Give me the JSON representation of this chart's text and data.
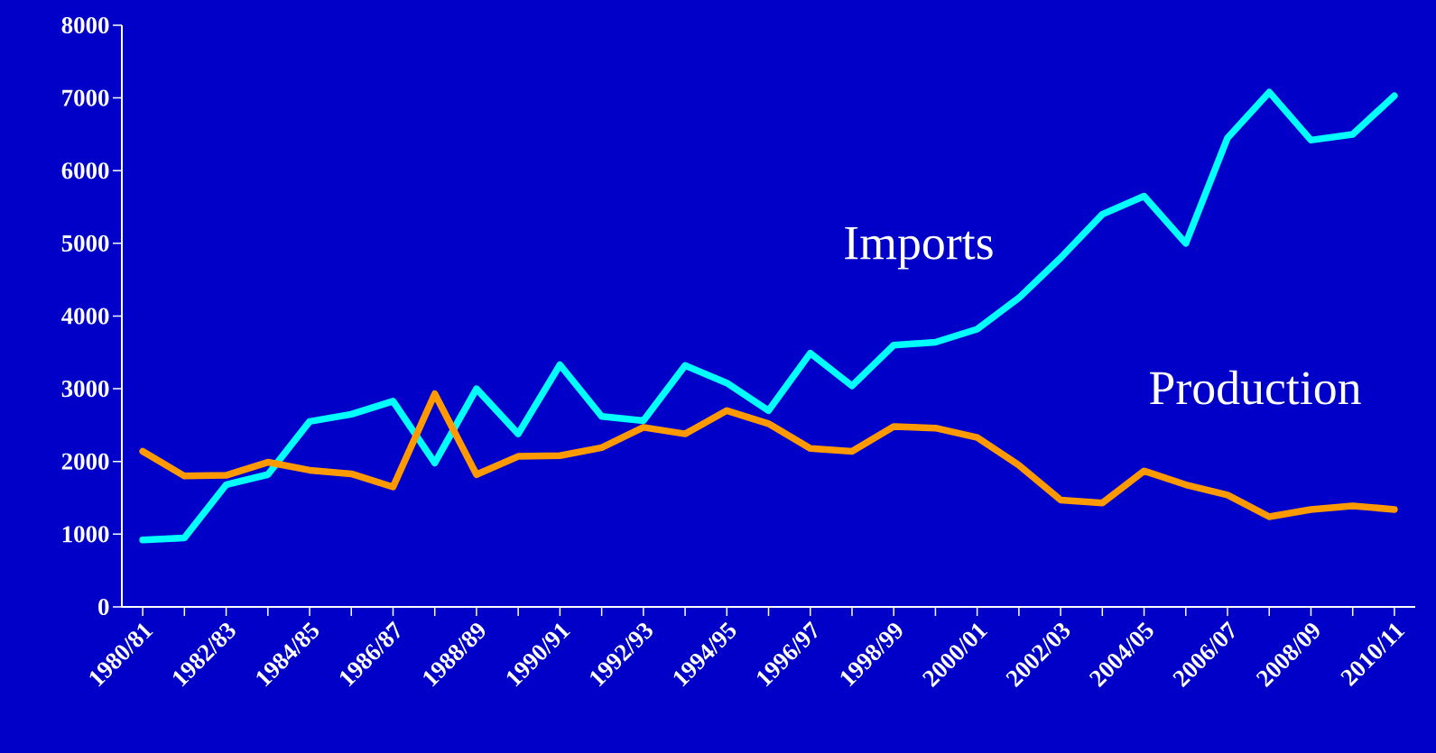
{
  "chart_data": {
    "type": "line",
    "categories": [
      "1980/81",
      null,
      "1982/83",
      null,
      "1984/85",
      null,
      "1986/87",
      null,
      "1988/89",
      null,
      "1990/91",
      null,
      "1992/93",
      null,
      "1994/95",
      null,
      "1996/97",
      null,
      "1998/99",
      null,
      "2000/01",
      null,
      "2002/03",
      null,
      "2004/05",
      null,
      "2006/07",
      null,
      "2008/09",
      null,
      "2010/11"
    ],
    "series": [
      {
        "name": "Imports",
        "color": "#00ffff",
        "values": [
          920,
          950,
          1680,
          1820,
          2550,
          2650,
          2830,
          1980,
          3000,
          2380,
          3330,
          2620,
          2560,
          3320,
          3080,
          2700,
          3490,
          3040,
          3600,
          3640,
          3820,
          4250,
          4800,
          5400,
          5650,
          5000,
          6450,
          7080,
          6420,
          6500,
          7030
        ]
      },
      {
        "name": "Production",
        "color": "#ff9900",
        "values": [
          2140,
          1800,
          1810,
          1990,
          1880,
          1830,
          1650,
          2930,
          1820,
          2070,
          2080,
          2190,
          2470,
          2380,
          2700,
          2520,
          2180,
          2140,
          2480,
          2460,
          2330,
          1950,
          1470,
          1430,
          1870,
          1680,
          1540,
          1240,
          1340,
          1390,
          1340
        ]
      }
    ],
    "ylim": [
      0,
      8000
    ],
    "yticks": [
      0,
      1000,
      2000,
      3000,
      4000,
      5000,
      6000,
      7000,
      8000
    ],
    "grid": false,
    "legend": false,
    "marker": "none",
    "line_style": "solid"
  }
}
